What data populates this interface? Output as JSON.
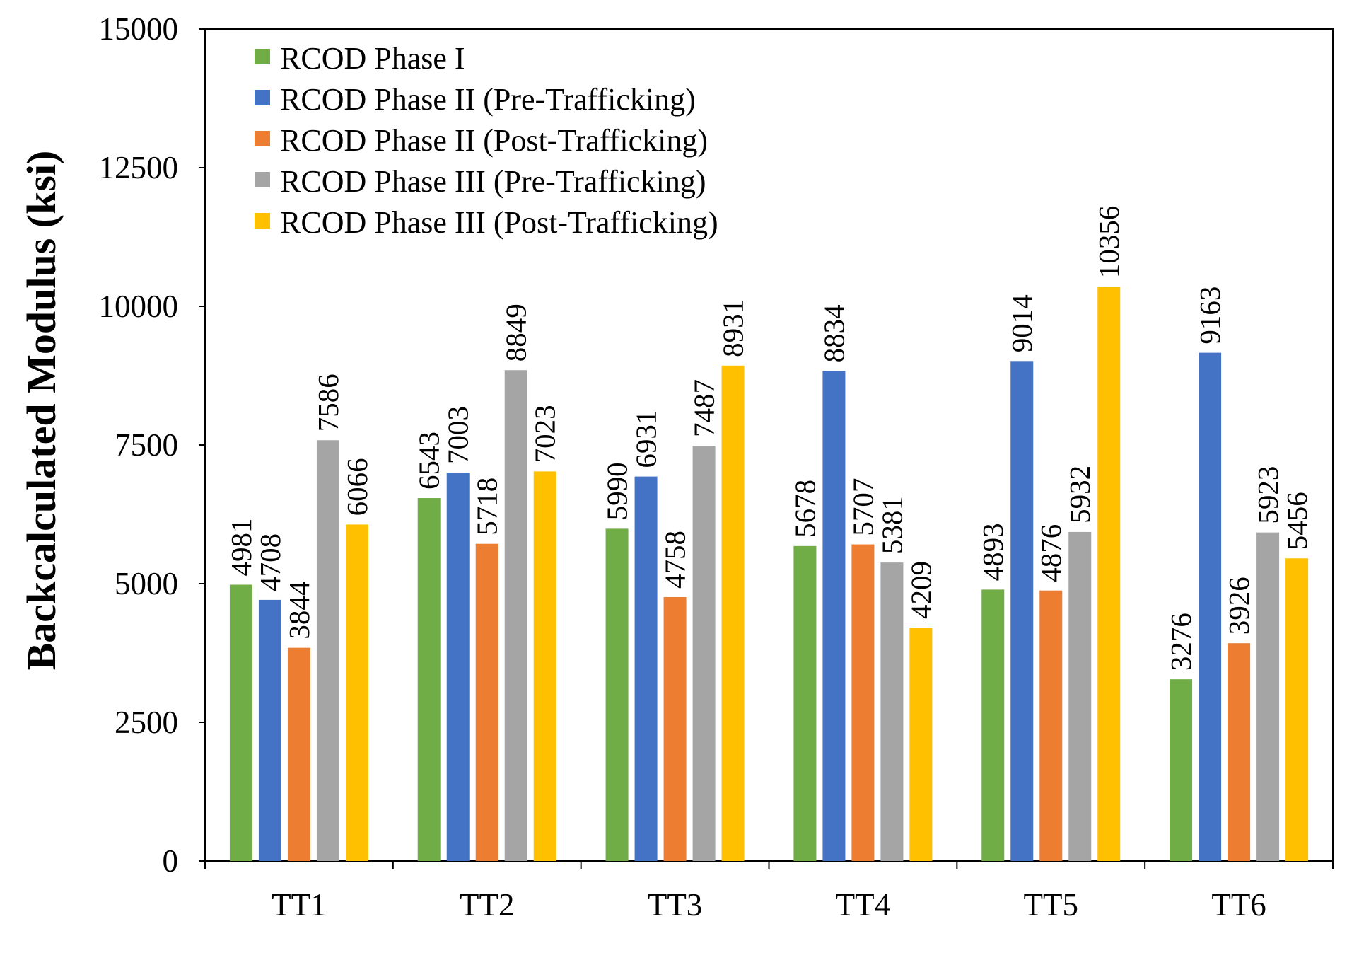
{
  "chart_data": {
    "type": "bar",
    "title": "",
    "xlabel": "",
    "ylabel": "Backcalculated Modulus (ksi)",
    "ylim": [
      0,
      15000
    ],
    "yticks": [
      0,
      2500,
      5000,
      7500,
      10000,
      12500,
      15000
    ],
    "grid": false,
    "legend_position": "top-left",
    "categories": [
      "TT1",
      "TT2",
      "TT3",
      "TT4",
      "TT5",
      "TT6"
    ],
    "series": [
      {
        "name": "RCOD Phase I",
        "color": "#70AD47",
        "values": [
          4981,
          6543,
          5990,
          5678,
          4893,
          3276
        ]
      },
      {
        "name": "RCOD Phase II (Pre-Trafficking)",
        "color": "#4472C4",
        "values": [
          4708,
          7003,
          6931,
          8834,
          9014,
          9163
        ]
      },
      {
        "name": "RCOD Phase II (Post-Trafficking)",
        "color": "#ED7D31",
        "values": [
          3844,
          5718,
          4758,
          5707,
          4876,
          3926
        ]
      },
      {
        "name": "RCOD Phase III (Pre-Trafficking)",
        "color": "#A5A5A5",
        "values": [
          7586,
          8849,
          7487,
          5381,
          5932,
          5923
        ]
      },
      {
        "name": "RCOD Phase III (Post-Trafficking)",
        "color": "#FFC000",
        "values": [
          6066,
          7023,
          8931,
          4209,
          10356,
          5456
        ]
      }
    ]
  }
}
